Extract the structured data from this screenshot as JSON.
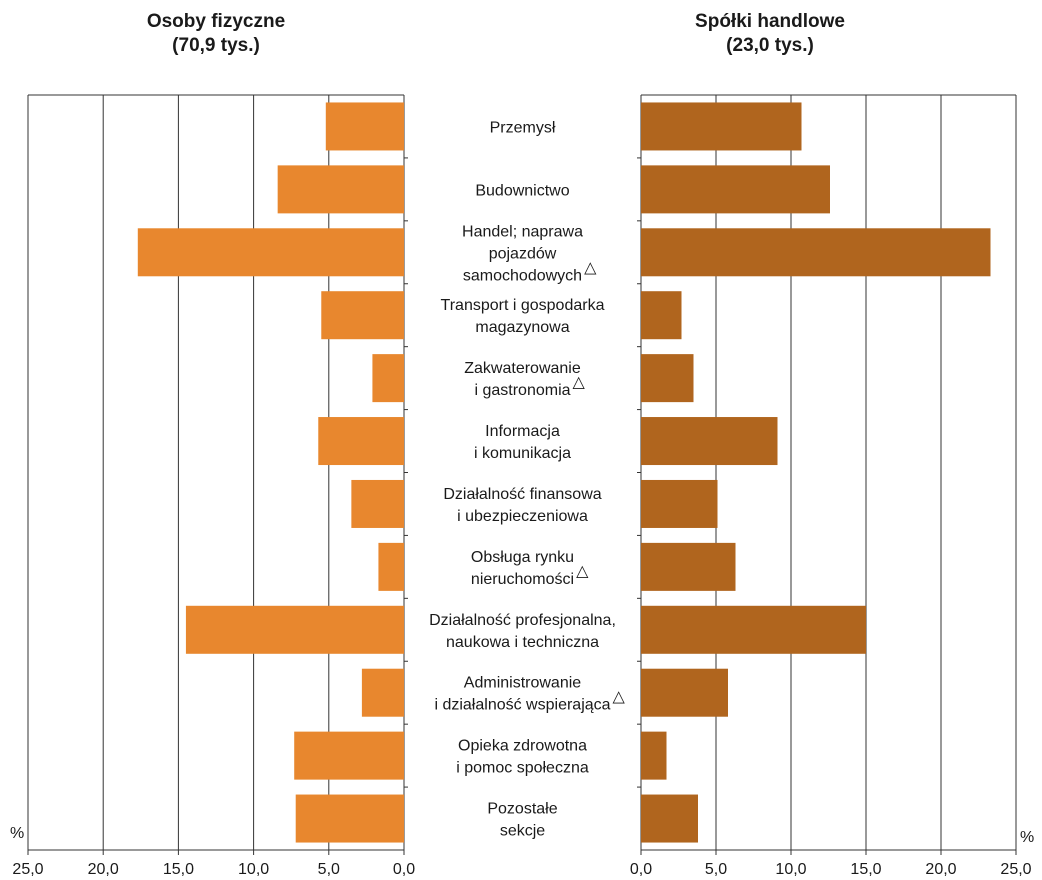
{
  "chart_data": {
    "type": "bar",
    "orientation": "horizontal",
    "categories": [
      [
        "Przemysł"
      ],
      [
        "Budownictwo"
      ],
      [
        "Handel; naprawa",
        "pojazdów",
        "samochodowych"
      ],
      [
        "Transport i gospodarka",
        "magazynowa"
      ],
      [
        "Zakwaterowanie",
        "i gastronomia"
      ],
      [
        "Informacja",
        "i komunikacja"
      ],
      [
        "Działalność finansowa",
        "i ubezpieczeniowa"
      ],
      [
        "Obsługa rynku",
        "nieruchomości"
      ],
      [
        "Działalność profesjonalna,",
        "naukowa i techniczna"
      ],
      [
        "Administrowanie",
        "i działalność wspierająca"
      ],
      [
        "Opieka zdrowotna",
        "i pomoc społeczna"
      ],
      [
        "Pozostałe",
        "sekcje"
      ]
    ],
    "triangle_marks": [
      false,
      false,
      true,
      false,
      true,
      false,
      false,
      true,
      false,
      true,
      false,
      false
    ],
    "triangle_symbol": "△",
    "panels": [
      {
        "title_line1": "Osoby fizyczne",
        "title_line2": "(70,9 tys.)",
        "values": [
          5.2,
          8.4,
          17.7,
          5.5,
          2.1,
          5.7,
          3.5,
          1.7,
          14.5,
          2.8,
          7.3,
          7.2
        ],
        "color": "#E8872E",
        "xlim": [
          0,
          25
        ],
        "direction": "reversed"
      },
      {
        "title_line1": "Spółki handlowe",
        "title_line2": "(23,0 tys.)",
        "values": [
          10.7,
          12.6,
          23.3,
          2.7,
          3.5,
          9.1,
          5.1,
          6.3,
          15.0,
          5.8,
          1.7,
          3.8
        ],
        "color": "#B0651E",
        "xlim": [
          0,
          25
        ],
        "direction": "normal"
      }
    ],
    "ticks": [
      "25,0",
      "20,0",
      "15,0",
      "10,0",
      "5,0",
      "0,0"
    ],
    "ticks_right": [
      "0,0",
      "5,0",
      "10,0",
      "15,0",
      "20,0",
      "25,0"
    ],
    "unit": "%",
    "grid": true
  }
}
